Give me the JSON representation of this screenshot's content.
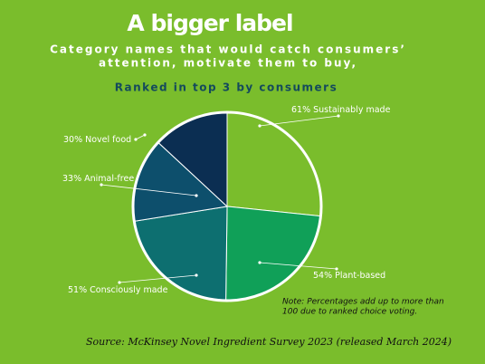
{
  "chart_data": {
    "type": "pie",
    "title": "A bigger label",
    "subtitle": [
      "Category names that would catch consumers’",
      "attention, motivate them to buy,"
    ],
    "heading": "Ranked in top 3 by consumers",
    "categories": [
      "Sustainably made",
      "Plant-based",
      "Consciously made",
      "Animal-free",
      "Novel food"
    ],
    "values": [
      61,
      54,
      51,
      33,
      30
    ],
    "value_labels": [
      "61%",
      "54%",
      "51%",
      "33%",
      "30%"
    ],
    "colors": [
      "#7abd2c",
      "#10a058",
      "#0d6f70",
      "#0d4f6c",
      "#0b2e52"
    ],
    "note": [
      "Note: Percentages add up to more than",
      "100 due to ranked choice voting."
    ],
    "source": "Source: McKinsey Novel Ingredient Survey 2023 (released March 2024)"
  }
}
